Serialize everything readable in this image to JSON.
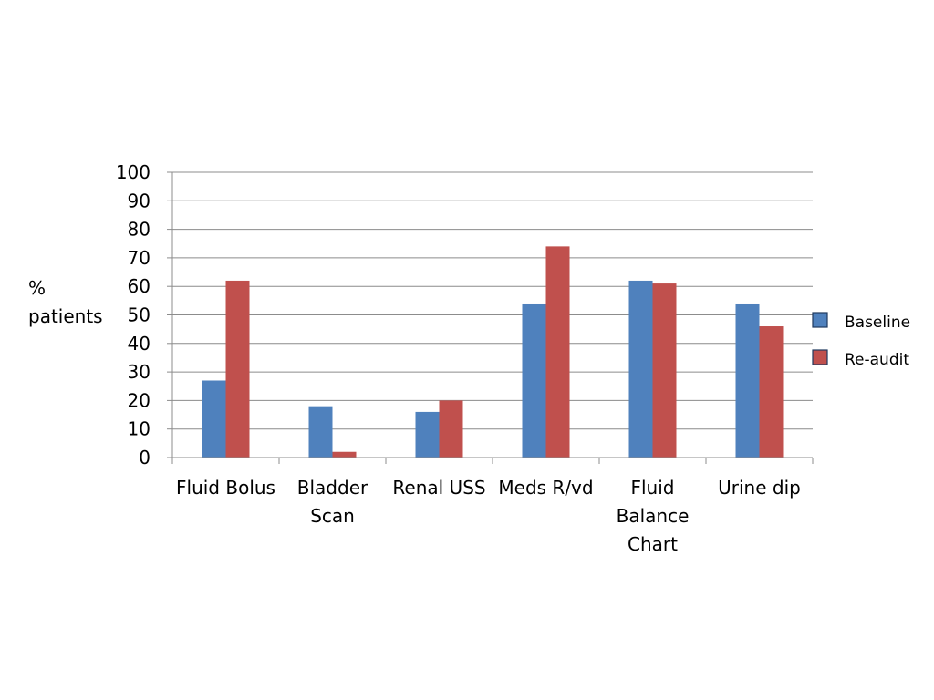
{
  "chart_data": {
    "type": "bar",
    "title": "",
    "ylabel": [
      "%",
      "patients"
    ],
    "xlabel": "",
    "ylim": [
      0,
      100
    ],
    "yticks": [
      0,
      10,
      20,
      30,
      40,
      50,
      60,
      70,
      80,
      90,
      100
    ],
    "grid": true,
    "legend_position": "right",
    "categories": [
      [
        "Fluid Bolus"
      ],
      [
        "Bladder",
        "Scan"
      ],
      [
        "Renal USS"
      ],
      [
        "Meds R/vd"
      ],
      [
        "Fluid",
        "Balance",
        "Chart"
      ],
      [
        "Urine dip"
      ]
    ],
    "series": [
      {
        "name": "Baseline",
        "color": "#4f81bd",
        "values": [
          27,
          18,
          16,
          54,
          62,
          54
        ]
      },
      {
        "name": "Re-audit",
        "color": "#c0504d",
        "values": [
          62,
          2,
          20,
          74,
          61,
          46
        ]
      }
    ]
  }
}
